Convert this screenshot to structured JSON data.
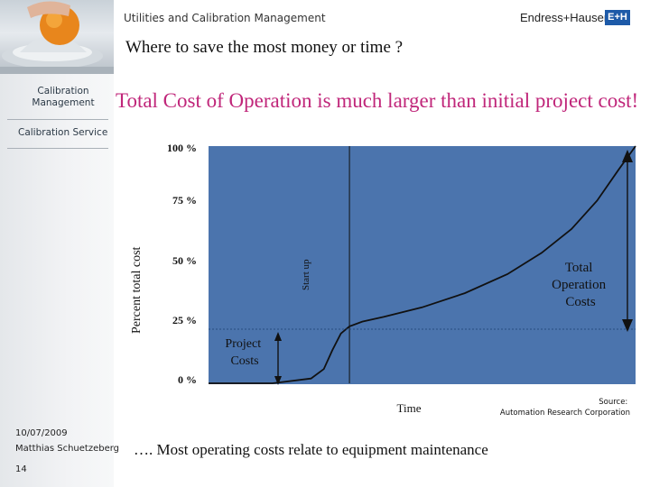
{
  "header": {
    "title": "Utilities and Calibration Management",
    "logo_text": "Endress+Hauser",
    "logo_mark": "E+H",
    "subtitle": "Where to save the most money or time ?"
  },
  "sidebar": {
    "items": [
      {
        "label": "Calibration Management"
      },
      {
        "label": "Calibration Service"
      }
    ],
    "date": "10/07/2009",
    "author": "Matthias Schuetzeberg",
    "page_number": "14"
  },
  "main": {
    "title": "Total Cost of Operation is much larger than initial project cost!",
    "footnote": "…. Most operating costs relate to equipment maintenance"
  },
  "chart_data": {
    "type": "area",
    "ylabel": "Percent total cost",
    "xlabel": "Time",
    "yticks": [
      "0 %",
      "25 %",
      "50 %",
      "75 %",
      "100 %"
    ],
    "ylim": [
      0,
      100
    ],
    "xlim": [
      0,
      100
    ],
    "fill_color": "#4b74ad",
    "line_color": "#111111",
    "grid": false,
    "series": [
      {
        "values_x": [
          0,
          15,
          24,
          27,
          29,
          31,
          33,
          36,
          41,
          50,
          60,
          70,
          78,
          85,
          91,
          96,
          100
        ],
        "values_y": [
          0,
          0,
          2,
          6,
          14,
          21,
          24,
          26,
          28,
          32,
          38,
          46,
          55,
          65,
          77,
          90,
          100
        ]
      }
    ],
    "markers": {
      "start_up_x": 33,
      "start_up_label": "Start up",
      "project_costs_label": "Project Costs",
      "total_operation_label": "Total Operation Costs"
    },
    "source": "Source: Automation Research Corporation"
  }
}
